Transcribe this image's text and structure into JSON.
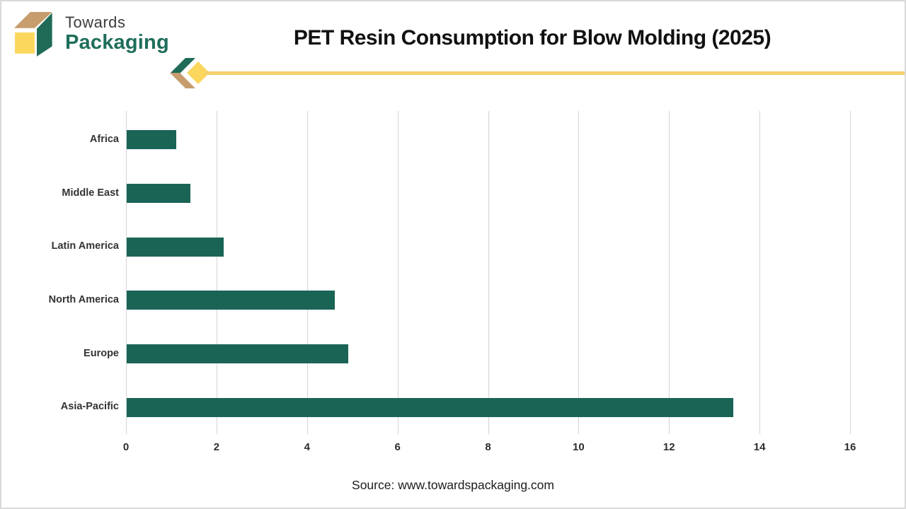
{
  "brand": {
    "line1": "Towards",
    "line2": "Packaging"
  },
  "source": {
    "text": "Source: www.towardspackaging.com"
  },
  "colors": {
    "brand_green": "#1F6B58",
    "brand_text_green": "#1E6E5B",
    "brand_dark": "#3C3C3C",
    "tan": "#C79D6E",
    "yellow": "#FBD75E",
    "line_yellow": "#F4D16C",
    "grid": "#D4D4D4",
    "title_text": "#111111",
    "bar": "#1A6456"
  },
  "chart_data": {
    "type": "bar",
    "orientation": "horizontal",
    "title": "PET Resin Consumption for Blow Molding (2025)",
    "categories": [
      "Africa",
      "Middle East",
      "Latin America",
      "North America",
      "Europe",
      "Asia-Pacific"
    ],
    "values": [
      1.1,
      1.4,
      2.15,
      4.6,
      4.9,
      13.4
    ],
    "xticks": [
      0,
      2,
      4,
      6,
      8,
      10,
      12,
      14,
      16
    ],
    "xlim": [
      0,
      16
    ],
    "xlabel": "",
    "ylabel": "",
    "grid": "vertical",
    "legend": false,
    "bar_color": "#1A6456"
  }
}
